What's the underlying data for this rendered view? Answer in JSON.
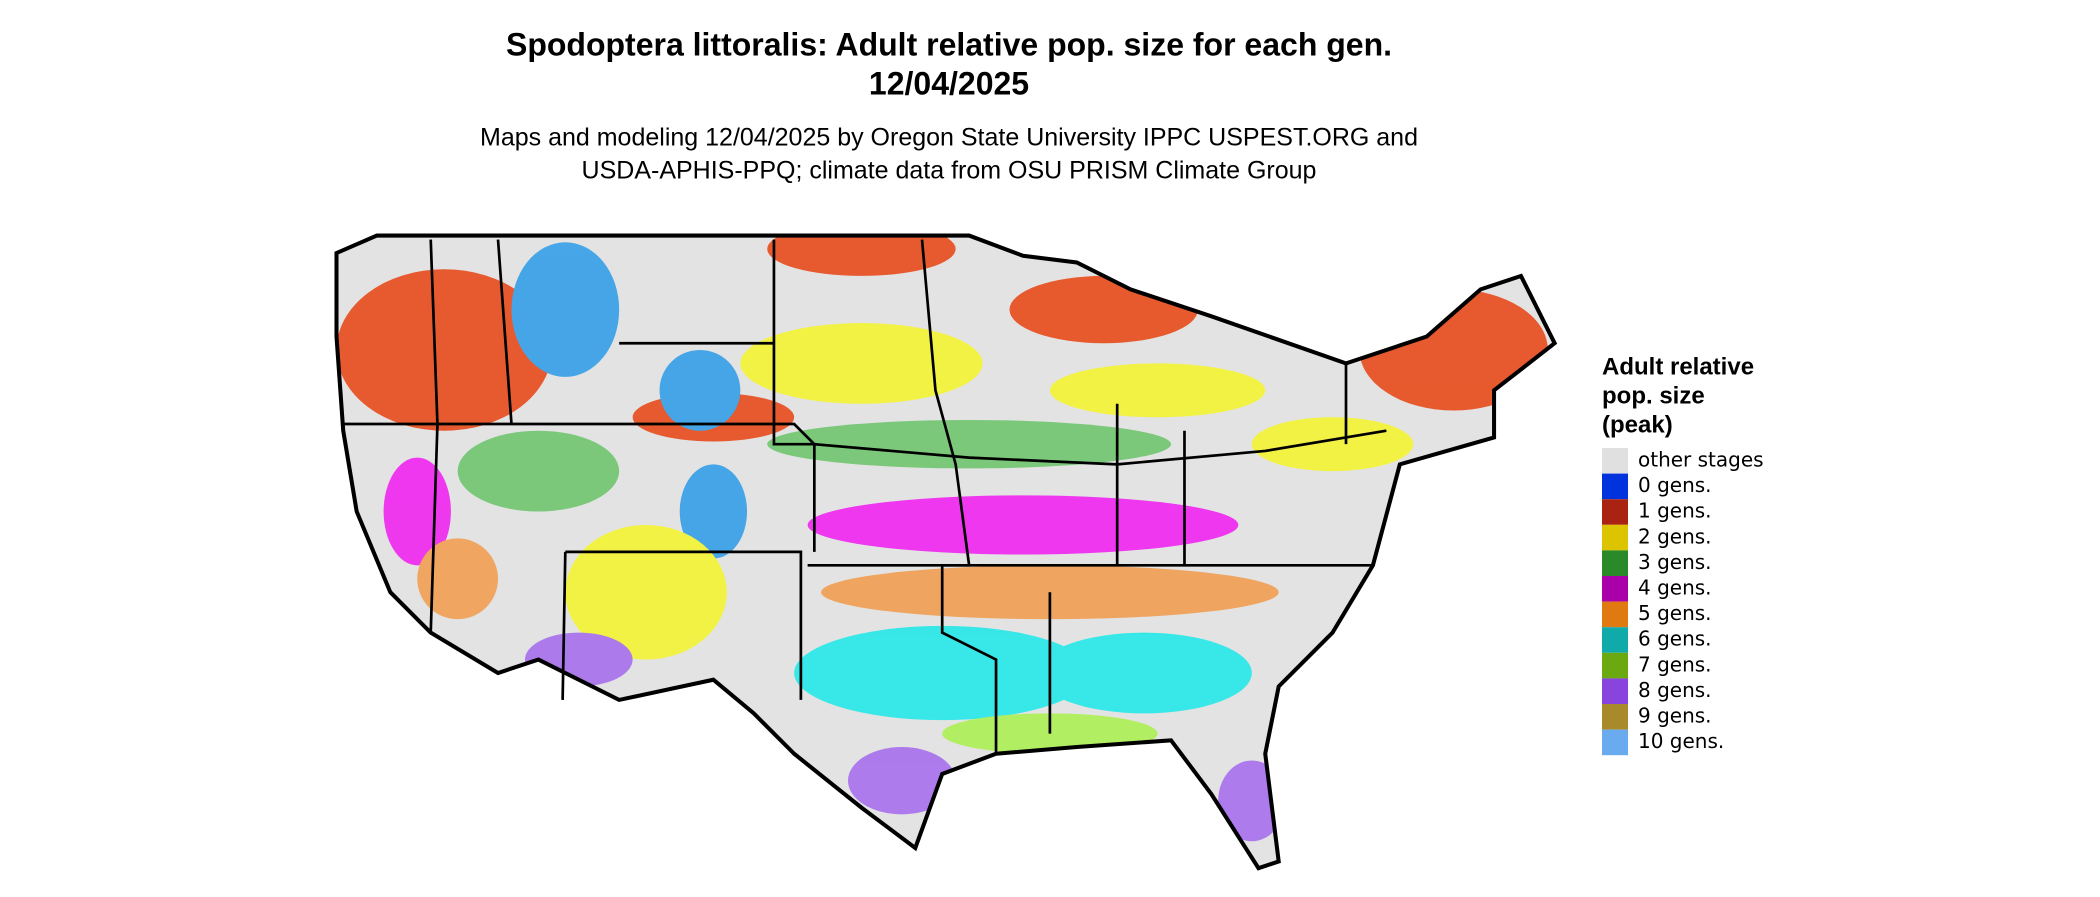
{
  "header": {
    "title_lines": [
      "Spodoptera littoralis: Adult relative pop. size for each gen.",
      "12/04/2025"
    ],
    "subtitle_lines": [
      "Maps and modeling 12/04/2025 by Oregon State University IPPC USPEST.ORG and",
      "USDA-APHIS-PPQ; climate data from OSU PRISM Climate Group"
    ]
  },
  "legend": {
    "title_lines": [
      "Adult relative",
      "pop. size",
      "(peak)"
    ],
    "items": [
      {
        "label": "other stages",
        "color": "#e0e0e0"
      },
      {
        "label": "0 gens.",
        "color": "#0033dd"
      },
      {
        "label": "1 gens.",
        "color": "#aa2211"
      },
      {
        "label": "2 gens.",
        "color": "#dcc400"
      },
      {
        "label": "3 gens.",
        "color": "#2a8a2a"
      },
      {
        "label": "4 gens.",
        "color": "#aa00aa"
      },
      {
        "label": "5 gens.",
        "color": "#e07a10"
      },
      {
        "label": "6 gens.",
        "color": "#10aaaa"
      },
      {
        "label": "7 gens.",
        "color": "#6aaa10"
      },
      {
        "label": "8 gens.",
        "color": "#8844dd"
      },
      {
        "label": "9 gens.",
        "color": "#a88a2a"
      },
      {
        "label": "10 gens.",
        "color": "#6aaaee"
      }
    ]
  }
}
